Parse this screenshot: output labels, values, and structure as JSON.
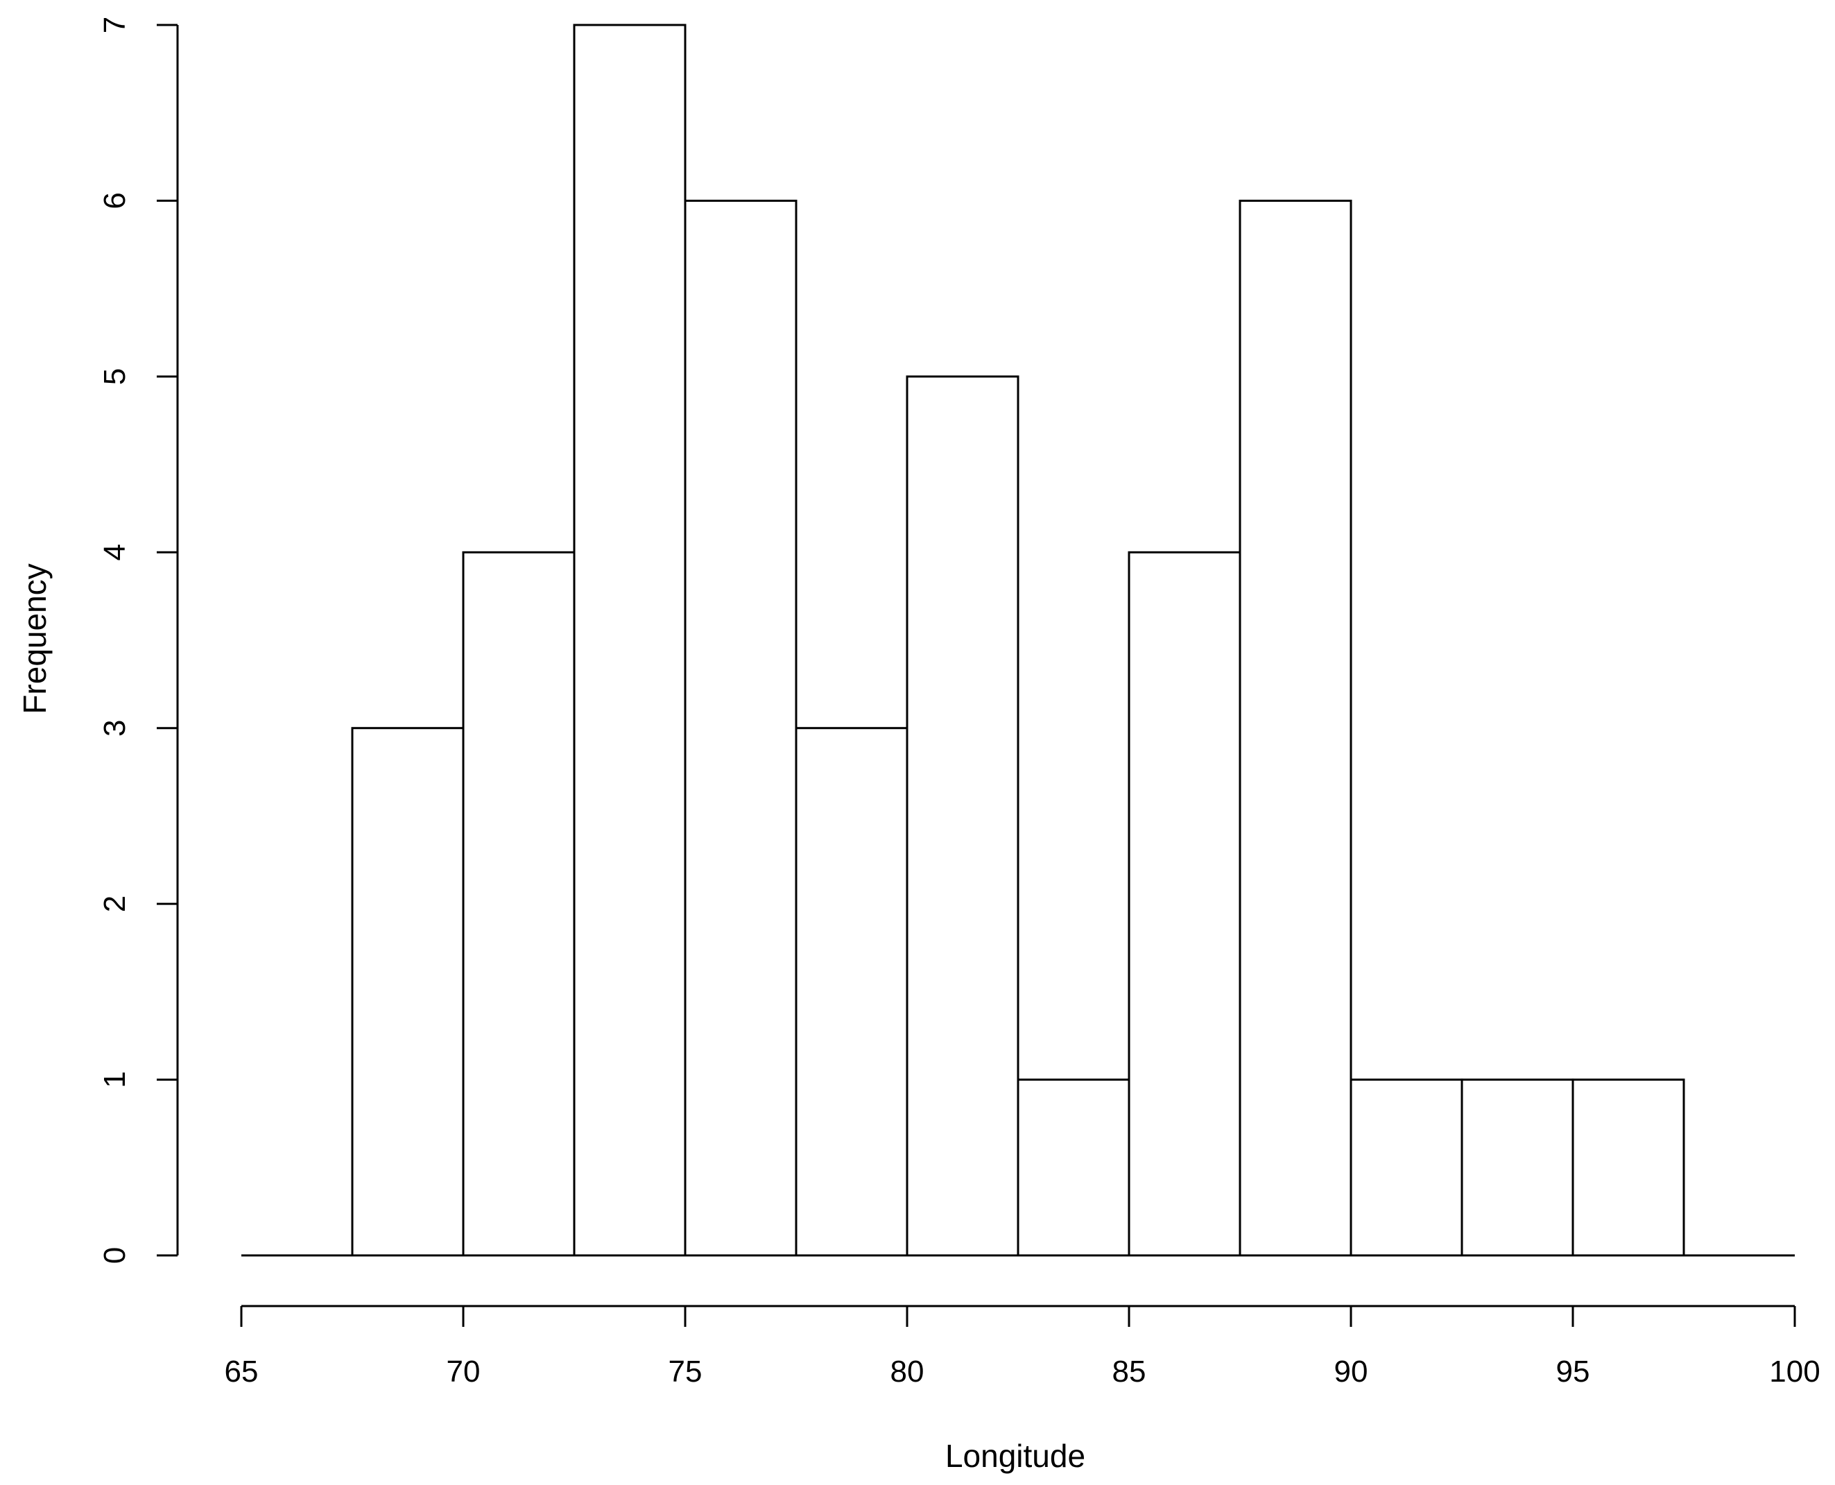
{
  "chart_data": {
    "type": "bar",
    "title": "",
    "xlabel": "Longitude",
    "ylabel": "Frequency",
    "bin_edges": [
      65,
      67.5,
      70,
      72.5,
      75,
      77.5,
      80,
      82.5,
      85,
      87.5,
      90,
      92.5,
      95,
      97.5,
      100
    ],
    "values": [
      0,
      3,
      4,
      7,
      6,
      3,
      5,
      1,
      4,
      6,
      1,
      1,
      1,
      0
    ],
    "xlim": [
      65,
      100
    ],
    "ylim": [
      0,
      7
    ],
    "x_ticks": [
      "65",
      "70",
      "75",
      "80",
      "85",
      "90",
      "95",
      "100"
    ],
    "y_ticks": [
      "0",
      "1",
      "2",
      "3",
      "4",
      "5",
      "6",
      "7"
    ],
    "grid": false,
    "colors": {
      "bar_fill": "#ffffff",
      "bar_stroke": "#000000"
    }
  }
}
